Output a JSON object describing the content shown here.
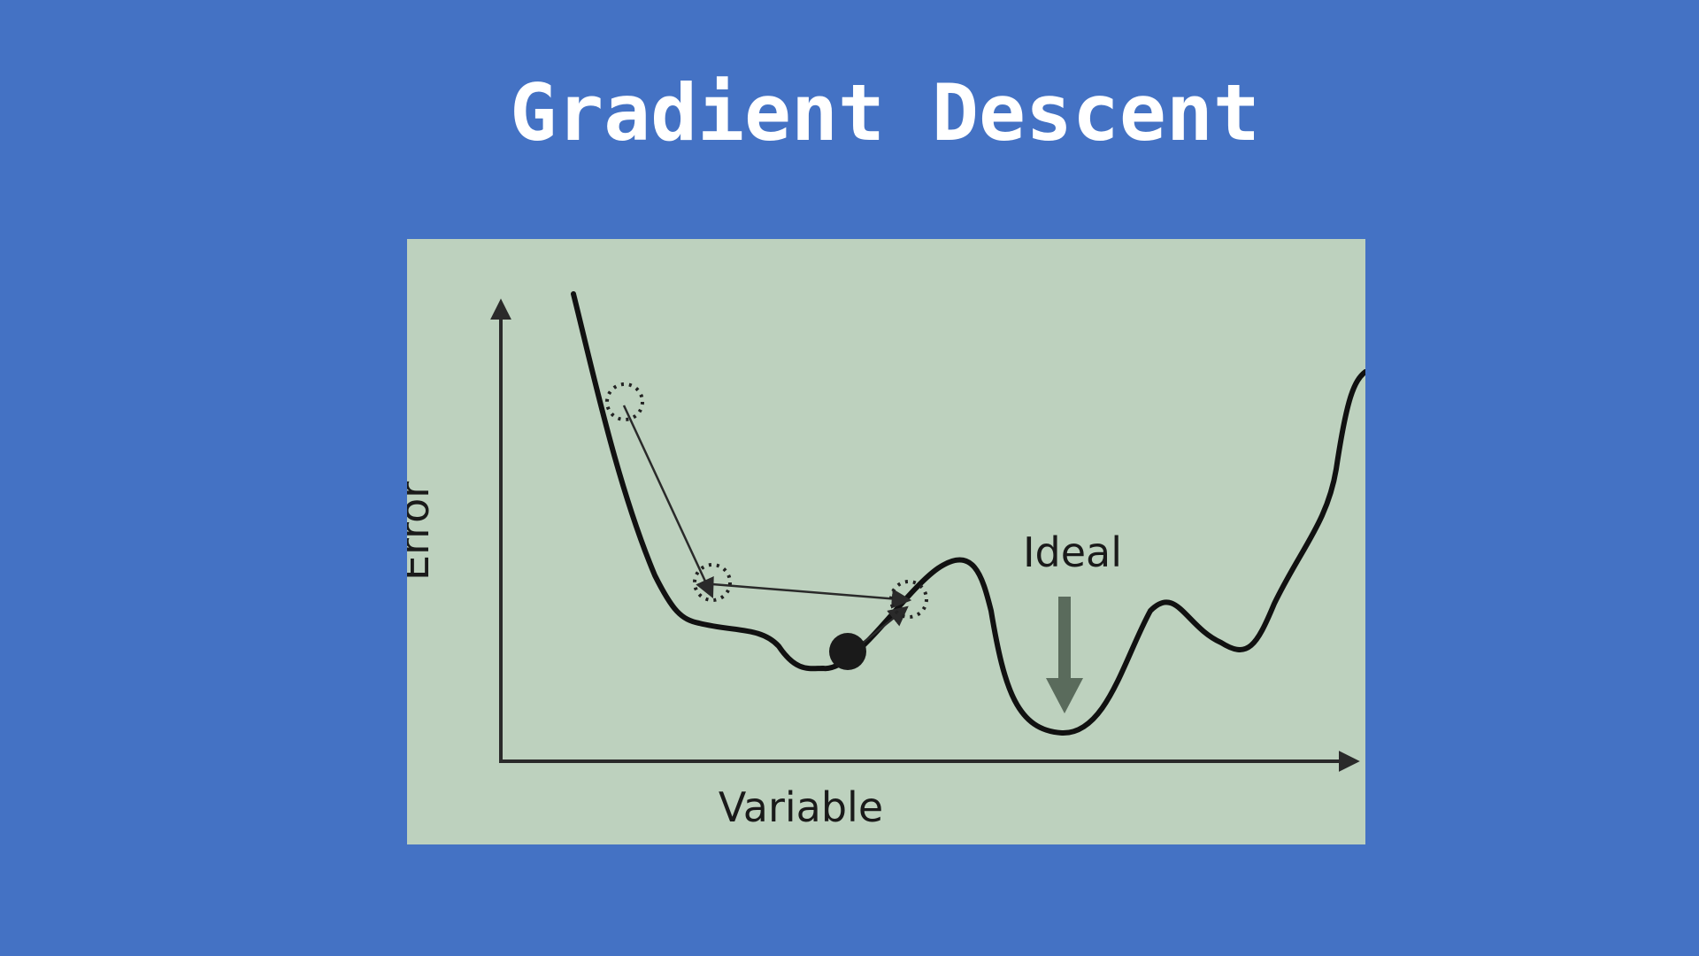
{
  "slide": {
    "title": "Gradient Descent"
  },
  "diagram": {
    "y_axis_label": "Error",
    "x_axis_label": "Variable",
    "ideal_label": "Ideal",
    "colors": {
      "background": "#4472c4",
      "panel": "#bdd1be",
      "curve": "#111111",
      "arrow_ideal": "#5a6b5c"
    }
  }
}
